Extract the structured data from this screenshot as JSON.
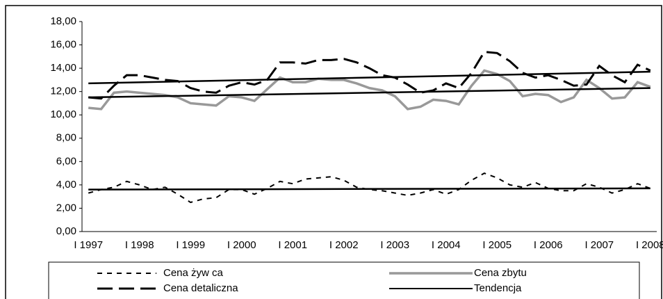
{
  "chart_data": {
    "type": "line",
    "categories": [
      "I 1997",
      null,
      null,
      null,
      "I 1998",
      null,
      null,
      null,
      "I 1999",
      null,
      null,
      null,
      "I 2000",
      null,
      null,
      null,
      "I 2001",
      null,
      null,
      null,
      "I 2002",
      null,
      null,
      null,
      "I 2003",
      null,
      null,
      null,
      "I 2004",
      null,
      null,
      null,
      "I 2005",
      null,
      null,
      null,
      "I 2006",
      null,
      null,
      null,
      "I 2007",
      null,
      null,
      null,
      "I 2008"
    ],
    "series": [
      {
        "name": "Cena żyw ca",
        "color": "#000000",
        "line_style": "short-dash",
        "values": [
          3.3,
          3.6,
          3.8,
          4.3,
          4.0,
          3.6,
          3.8,
          3.2,
          2.5,
          2.8,
          2.9,
          3.6,
          3.6,
          3.2,
          3.7,
          4.3,
          4.1,
          4.5,
          4.6,
          4.7,
          4.4,
          3.8,
          3.6,
          3.5,
          3.3,
          3.1,
          3.3,
          3.6,
          3.2,
          3.6,
          4.4,
          5.0,
          4.6,
          4.0,
          3.8,
          4.2,
          3.7,
          3.5,
          3.5,
          4.1,
          3.8,
          3.3,
          3.6,
          4.1,
          3.7
        ]
      },
      {
        "name": "Cena zbytu",
        "color": "#999999",
        "line_style": "solid",
        "values": [
          10.6,
          10.5,
          11.9,
          12.0,
          11.9,
          11.8,
          11.7,
          11.5,
          11.0,
          10.9,
          10.8,
          11.6,
          11.5,
          11.2,
          12.2,
          13.2,
          12.8,
          12.8,
          13.1,
          13.0,
          13.0,
          12.7,
          12.3,
          12.1,
          11.6,
          10.5,
          10.7,
          11.3,
          11.2,
          10.9,
          12.5,
          13.8,
          13.5,
          12.9,
          11.6,
          11.8,
          11.7,
          11.1,
          11.5,
          13.0,
          12.3,
          11.4,
          11.5,
          12.8,
          12.4
        ]
      },
      {
        "name": "Cena detaliczna",
        "color": "#000000",
        "line_style": "long-dash",
        "values": [
          11.5,
          11.4,
          12.5,
          13.4,
          13.4,
          13.2,
          13.0,
          12.9,
          12.3,
          12.0,
          11.9,
          12.5,
          12.8,
          12.6,
          13.0,
          14.5,
          14.5,
          14.4,
          14.7,
          14.7,
          14.8,
          14.5,
          14.0,
          13.4,
          13.2,
          12.6,
          11.9,
          12.1,
          12.7,
          12.3,
          13.6,
          15.4,
          15.3,
          14.6,
          13.6,
          13.2,
          13.4,
          13.0,
          12.5,
          12.6,
          14.2,
          13.4,
          12.8,
          14.3,
          13.8
        ]
      }
    ],
    "trend": {
      "name": "Tendencja",
      "color": "#000000",
      "line_style": "solid",
      "lines": [
        {
          "start": 12.7,
          "end": 13.7
        },
        {
          "start": 11.5,
          "end": 12.3
        },
        {
          "start": 3.6,
          "end": 3.7
        }
      ]
    },
    "ylim": [
      0,
      18
    ],
    "yticks": [
      {
        "value": 0,
        "label": "0,00"
      },
      {
        "value": 2,
        "label": "2,00"
      },
      {
        "value": 4,
        "label": "4,00"
      },
      {
        "value": 6,
        "label": "6,00"
      },
      {
        "value": 8,
        "label": "8,00"
      },
      {
        "value": 10,
        "label": "10,00"
      },
      {
        "value": 12,
        "label": "12,00"
      },
      {
        "value": 14,
        "label": "14,00"
      },
      {
        "value": 16,
        "label": "16,00"
      },
      {
        "value": 18,
        "label": "18,00"
      }
    ],
    "grid": false
  }
}
